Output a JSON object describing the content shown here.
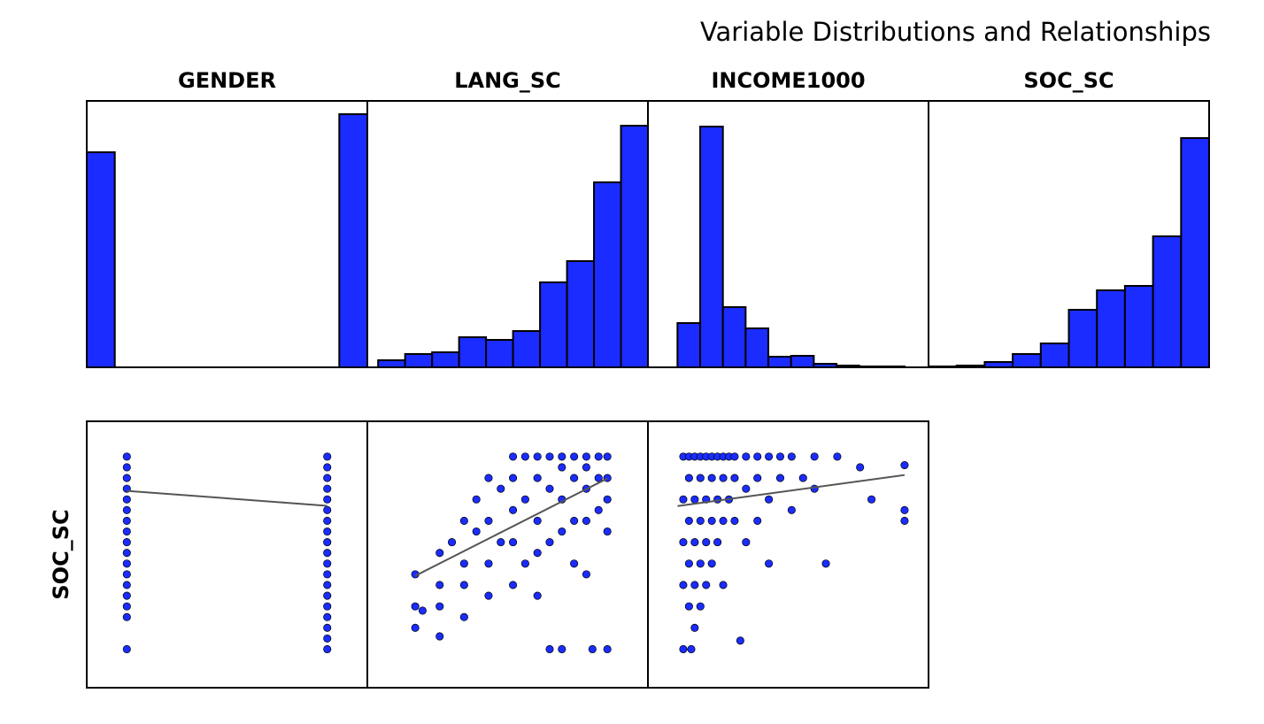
{
  "title": "Variable Distributions and Relationships",
  "chart_data": [
    {
      "type": "histogram",
      "title": "GENDER",
      "color": "#1a2cff",
      "edgecolor": "#000000",
      "bins": [
        0,
        0.1,
        0.2,
        0.3,
        0.4,
        0.5,
        0.6,
        0.7,
        0.8,
        0.9,
        1.0
      ],
      "values": [
        243,
        0,
        0,
        0,
        0,
        0,
        0,
        0,
        0,
        286
      ],
      "xlim": [
        0,
        1
      ],
      "ylim": [
        0,
        301
      ]
    },
    {
      "type": "histogram",
      "title": "LANG_SC",
      "color": "#1a2cff",
      "edgecolor": "#000000",
      "bins": [
        0,
        1,
        2,
        3,
        4,
        5,
        6,
        7,
        8,
        9,
        10
      ],
      "values": [
        8,
        15,
        17,
        34,
        31,
        41,
        96,
        120,
        209,
        273
      ],
      "xlim": [
        -0.4,
        10
      ],
      "ylim": [
        0,
        301
      ]
    },
    {
      "type": "histogram",
      "title": "INCOME1000",
      "color": "#1a2cff",
      "edgecolor": "#000000",
      "bins": [
        0,
        20,
        40,
        60,
        80,
        100,
        120,
        140,
        160,
        180,
        200
      ],
      "values": [
        50,
        272,
        68,
        44,
        12,
        13,
        4,
        2,
        1,
        1
      ],
      "xlim": [
        -26,
        221
      ],
      "ylim": [
        0,
        301
      ]
    },
    {
      "type": "histogram",
      "title": "SOC_SC",
      "color": "#1a2cff",
      "edgecolor": "#000000",
      "bins": [
        0,
        1,
        2,
        3,
        4,
        5,
        6,
        7,
        8,
        9,
        10
      ],
      "values": [
        1,
        2,
        6,
        15,
        27,
        65,
        87,
        92,
        148,
        259
      ],
      "xlim": [
        0,
        10
      ],
      "ylim": [
        0,
        301
      ]
    },
    {
      "type": "scatter",
      "ylabel": "SOC_SC",
      "xlim": [
        -0.2,
        1.2
      ],
      "ylim": [
        -0.8,
        11.65
      ],
      "series": [
        {
          "color": "#1a2cff",
          "x": [
            0,
            0,
            0,
            0,
            0,
            0,
            0,
            0,
            0,
            0,
            0,
            0,
            0,
            0,
            0,
            0,
            0,
            1,
            1,
            1,
            1,
            1,
            1,
            1,
            1,
            1,
            1,
            1,
            1,
            1,
            1,
            1,
            1,
            1,
            1,
            1
          ],
          "values": [
            1,
            2.5,
            3,
            3.5,
            4,
            4.5,
            5,
            5.5,
            6,
            6.5,
            7,
            7.5,
            8,
            8.5,
            9,
            9.5,
            10,
            1,
            1.5,
            2,
            2.5,
            3,
            3.5,
            4,
            4.5,
            5,
            5.5,
            6,
            6.5,
            7,
            7.5,
            8,
            8.5,
            9,
            9.5,
            10
          ]
        }
      ],
      "trend": {
        "color": "#555555",
        "x": [
          0,
          1
        ],
        "values": [
          8.4,
          7.7
        ]
      }
    },
    {
      "type": "scatter",
      "xlim": [
        -0.96,
        10.52
      ],
      "ylim": [
        -0.8,
        11.65
      ],
      "series": [
        {
          "color": "#1a2cff",
          "x": [
            1,
            1,
            1,
            1.3,
            2,
            2,
            2,
            2,
            2.5,
            3,
            3,
            3,
            3,
            3.5,
            3.5,
            4,
            4,
            4,
            4,
            4.5,
            4.5,
            5,
            5,
            5,
            5,
            5,
            5.5,
            5.5,
            5.5,
            6,
            6,
            6,
            6,
            6,
            6.5,
            6.5,
            6.5,
            6.5,
            7,
            7,
            7,
            7,
            7,
            7.5,
            7.5,
            7.5,
            7.5,
            8,
            8,
            8,
            8,
            8,
            8.25,
            8.5,
            8.5,
            8.5,
            8.86,
            8.86,
            8.86,
            8.86,
            8.86
          ],
          "values": [
            4.5,
            3,
            2,
            2.8,
            4,
            5.5,
            3,
            1.6,
            6,
            7,
            5,
            4,
            2.5,
            8,
            6.5,
            9,
            7,
            5,
            3.5,
            8.5,
            6,
            10,
            9,
            7.5,
            6,
            4,
            10,
            8,
            5,
            10,
            9,
            7,
            5.5,
            3.5,
            10,
            8.5,
            6,
            1,
            10,
            9.5,
            8,
            6.5,
            1,
            10,
            9,
            7,
            5,
            10,
            9.5,
            8.5,
            7,
            4.5,
            1,
            10,
            9,
            7.5,
            10,
            9,
            8,
            6.5,
            1
          ]
        }
      ],
      "trend": {
        "color": "#555555",
        "x": [
          1,
          8.86
        ],
        "values": [
          4.43,
          8.98
        ]
      }
    },
    {
      "type": "scatter",
      "xlim": [
        -26,
        220
      ],
      "ylim": [
        -0.8,
        11.65
      ],
      "series": [
        {
          "color": "#1a2cff",
          "x": [
            5,
            5,
            5,
            5,
            5,
            10,
            10,
            10,
            10,
            10,
            12,
            15,
            15,
            15,
            15,
            15,
            20,
            20,
            20,
            20,
            20,
            25,
            25,
            25,
            25,
            30,
            30,
            30,
            30,
            35,
            35,
            35,
            40,
            40,
            40,
            40,
            45,
            45,
            50,
            50,
            50,
            55,
            60,
            60,
            60,
            70,
            70,
            70,
            80,
            80,
            80,
            90,
            90,
            100,
            100,
            110,
            120,
            120,
            130,
            140,
            160,
            170,
            199,
            199,
            199
          ],
          "values": [
            10,
            8,
            6,
            4,
            1,
            10,
            9,
            7,
            5,
            3,
            1,
            10,
            8,
            6,
            4,
            2,
            10,
            9,
            7,
            5,
            3,
            10,
            8,
            6,
            4,
            10,
            9,
            7,
            5,
            10,
            8,
            6,
            10,
            9,
            7,
            4,
            10,
            8,
            10,
            9,
            7,
            1.4,
            10,
            8.5,
            6,
            10,
            9,
            7,
            10,
            8,
            5,
            10,
            9,
            10,
            7.5,
            9,
            10,
            8.5,
            5,
            10,
            9.5,
            8,
            9.6,
            7.5,
            7
          ]
        }
      ],
      "trend": {
        "color": "#555555",
        "x": [
          0,
          199
        ],
        "values": [
          7.69,
          9.14
        ]
      }
    }
  ]
}
